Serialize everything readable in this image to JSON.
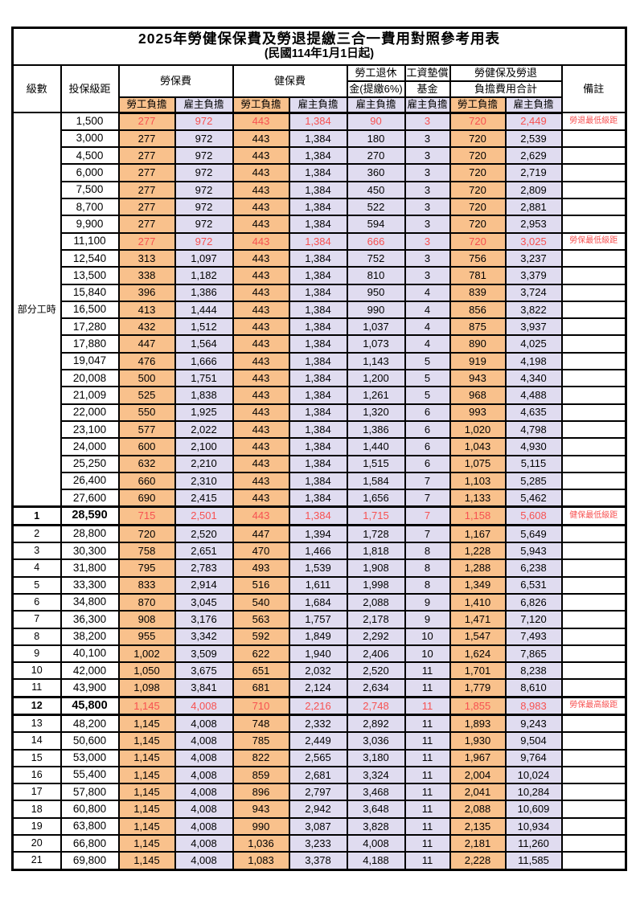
{
  "title": "2025年勞健保保費及勞退提繳三合一費用對照參考用表",
  "subtitle": "(民國114年1月1日起)",
  "colors": {
    "employee_bg": "#F9C18C",
    "employer_bg": "#E0DCF0",
    "highlight_red": "#F75151",
    "border": "#000000"
  },
  "header": {
    "level": "級數",
    "bracket": "投保級距",
    "labor": "勞保費",
    "health": "健保費",
    "pension_line1": "勞工退休",
    "pension_line2": "金(提繳6%)",
    "wagefund_line1": "工資墊償",
    "wagefund_line2": "基金",
    "total_line1": "勞健保及勞退",
    "total_line2": "負擔費用合計",
    "remark": "備註",
    "employee": "勞工負擔",
    "employer": "雇主負擔"
  },
  "part_time_label": "部分工時",
  "part_time_rows": [
    {
      "bracket": "1,500",
      "values": [
        "277",
        "972",
        "443",
        "1,384",
        "90",
        "3",
        "720",
        "2,449"
      ],
      "remark": "勞退最低級距",
      "red": true,
      "special": false
    },
    {
      "bracket": "3,000",
      "values": [
        "277",
        "972",
        "443",
        "1,384",
        "180",
        "3",
        "720",
        "2,539"
      ],
      "remark": "",
      "red": false,
      "special": false
    },
    {
      "bracket": "4,500",
      "values": [
        "277",
        "972",
        "443",
        "1,384",
        "270",
        "3",
        "720",
        "2,629"
      ],
      "remark": "",
      "red": false,
      "special": false
    },
    {
      "bracket": "6,000",
      "values": [
        "277",
        "972",
        "443",
        "1,384",
        "360",
        "3",
        "720",
        "2,719"
      ],
      "remark": "",
      "red": false,
      "special": false
    },
    {
      "bracket": "7,500",
      "values": [
        "277",
        "972",
        "443",
        "1,384",
        "450",
        "3",
        "720",
        "2,809"
      ],
      "remark": "",
      "red": false,
      "special": false
    },
    {
      "bracket": "8,700",
      "values": [
        "277",
        "972",
        "443",
        "1,384",
        "522",
        "3",
        "720",
        "2,881"
      ],
      "remark": "",
      "red": false,
      "special": false
    },
    {
      "bracket": "9,900",
      "values": [
        "277",
        "972",
        "443",
        "1,384",
        "594",
        "3",
        "720",
        "2,953"
      ],
      "remark": "",
      "red": false,
      "special": false
    },
    {
      "bracket": "11,100",
      "values": [
        "277",
        "972",
        "443",
        "1,384",
        "666",
        "3",
        "720",
        "3,025"
      ],
      "remark": "勞保最低級距",
      "red": true,
      "special": false
    },
    {
      "bracket": "12,540",
      "values": [
        "313",
        "1,097",
        "443",
        "1,384",
        "752",
        "3",
        "756",
        "3,237"
      ],
      "remark": "",
      "red": false,
      "special": false
    },
    {
      "bracket": "13,500",
      "values": [
        "338",
        "1,182",
        "443",
        "1,384",
        "810",
        "3",
        "781",
        "3,379"
      ],
      "remark": "",
      "red": false,
      "special": false
    },
    {
      "bracket": "15,840",
      "values": [
        "396",
        "1,386",
        "443",
        "1,384",
        "950",
        "4",
        "839",
        "3,724"
      ],
      "remark": "",
      "red": false,
      "special": false
    },
    {
      "bracket": "16,500",
      "values": [
        "413",
        "1,444",
        "443",
        "1,384",
        "990",
        "4",
        "856",
        "3,822"
      ],
      "remark": "",
      "red": false,
      "special": false
    },
    {
      "bracket": "17,280",
      "values": [
        "432",
        "1,512",
        "443",
        "1,384",
        "1,037",
        "4",
        "875",
        "3,937"
      ],
      "remark": "",
      "red": false,
      "special": false
    },
    {
      "bracket": "17,880",
      "values": [
        "447",
        "1,564",
        "443",
        "1,384",
        "1,073",
        "4",
        "890",
        "4,025"
      ],
      "remark": "",
      "red": false,
      "special": false
    },
    {
      "bracket": "19,047",
      "values": [
        "476",
        "1,666",
        "443",
        "1,384",
        "1,143",
        "5",
        "919",
        "4,198"
      ],
      "remark": "",
      "red": false,
      "special": false
    },
    {
      "bracket": "20,008",
      "values": [
        "500",
        "1,751",
        "443",
        "1,384",
        "1,200",
        "5",
        "943",
        "4,340"
      ],
      "remark": "",
      "red": false,
      "special": false
    },
    {
      "bracket": "21,009",
      "values": [
        "525",
        "1,838",
        "443",
        "1,384",
        "1,261",
        "5",
        "968",
        "4,488"
      ],
      "remark": "",
      "red": false,
      "special": false
    },
    {
      "bracket": "22,000",
      "values": [
        "550",
        "1,925",
        "443",
        "1,384",
        "1,320",
        "6",
        "993",
        "4,635"
      ],
      "remark": "",
      "red": false,
      "special": false
    },
    {
      "bracket": "23,100",
      "values": [
        "577",
        "2,022",
        "443",
        "1,384",
        "1,386",
        "6",
        "1,020",
        "4,798"
      ],
      "remark": "",
      "red": false,
      "special": false
    },
    {
      "bracket": "24,000",
      "values": [
        "600",
        "2,100",
        "443",
        "1,384",
        "1,440",
        "6",
        "1,043",
        "4,930"
      ],
      "remark": "",
      "red": false,
      "special": false
    },
    {
      "bracket": "25,250",
      "values": [
        "632",
        "2,210",
        "443",
        "1,384",
        "1,515",
        "6",
        "1,075",
        "5,115"
      ],
      "remark": "",
      "red": false,
      "special": false
    },
    {
      "bracket": "26,400",
      "values": [
        "660",
        "2,310",
        "443",
        "1,384",
        "1,584",
        "7",
        "1,103",
        "5,285"
      ],
      "remark": "",
      "red": false,
      "special": false
    },
    {
      "bracket": "27,600",
      "values": [
        "690",
        "2,415",
        "443",
        "1,384",
        "1,656",
        "7",
        "1,133",
        "5,462"
      ],
      "remark": "",
      "red": false,
      "special": false
    }
  ],
  "level_rows": [
    {
      "level": "1",
      "bracket": "28,590",
      "values": [
        "715",
        "2,501",
        "443",
        "1,384",
        "1,715",
        "7",
        "1,158",
        "5,608"
      ],
      "remark": "健保最低級距",
      "red": true,
      "special": true
    },
    {
      "level": "2",
      "bracket": "28,800",
      "values": [
        "720",
        "2,520",
        "447",
        "1,394",
        "1,728",
        "7",
        "1,167",
        "5,649"
      ],
      "remark": "",
      "red": false,
      "special": false
    },
    {
      "level": "3",
      "bracket": "30,300",
      "values": [
        "758",
        "2,651",
        "470",
        "1,466",
        "1,818",
        "8",
        "1,228",
        "5,943"
      ],
      "remark": "",
      "red": false,
      "special": false
    },
    {
      "level": "4",
      "bracket": "31,800",
      "values": [
        "795",
        "2,783",
        "493",
        "1,539",
        "1,908",
        "8",
        "1,288",
        "6,238"
      ],
      "remark": "",
      "red": false,
      "special": false
    },
    {
      "level": "5",
      "bracket": "33,300",
      "values": [
        "833",
        "2,914",
        "516",
        "1,611",
        "1,998",
        "8",
        "1,349",
        "6,531"
      ],
      "remark": "",
      "red": false,
      "special": false
    },
    {
      "level": "6",
      "bracket": "34,800",
      "values": [
        "870",
        "3,045",
        "540",
        "1,684",
        "2,088",
        "9",
        "1,410",
        "6,826"
      ],
      "remark": "",
      "red": false,
      "special": false
    },
    {
      "level": "7",
      "bracket": "36,300",
      "values": [
        "908",
        "3,176",
        "563",
        "1,757",
        "2,178",
        "9",
        "1,471",
        "7,120"
      ],
      "remark": "",
      "red": false,
      "special": false
    },
    {
      "level": "8",
      "bracket": "38,200",
      "values": [
        "955",
        "3,342",
        "592",
        "1,849",
        "2,292",
        "10",
        "1,547",
        "7,493"
      ],
      "remark": "",
      "red": false,
      "special": false
    },
    {
      "level": "9",
      "bracket": "40,100",
      "values": [
        "1,002",
        "3,509",
        "622",
        "1,940",
        "2,406",
        "10",
        "1,624",
        "7,865"
      ],
      "remark": "",
      "red": false,
      "special": false
    },
    {
      "level": "10",
      "bracket": "42,000",
      "values": [
        "1,050",
        "3,675",
        "651",
        "2,032",
        "2,520",
        "11",
        "1,701",
        "8,238"
      ],
      "remark": "",
      "red": false,
      "special": false
    },
    {
      "level": "11",
      "bracket": "43,900",
      "values": [
        "1,098",
        "3,841",
        "681",
        "2,124",
        "2,634",
        "11",
        "1,779",
        "8,610"
      ],
      "remark": "",
      "red": false,
      "special": false
    },
    {
      "level": "12",
      "bracket": "45,800",
      "values": [
        "1,145",
        "4,008",
        "710",
        "2,216",
        "2,748",
        "11",
        "1,855",
        "8,983"
      ],
      "remark": "勞保最高級距",
      "red": true,
      "special": true
    },
    {
      "level": "13",
      "bracket": "48,200",
      "values": [
        "1,145",
        "4,008",
        "748",
        "2,332",
        "2,892",
        "11",
        "1,893",
        "9,243"
      ],
      "remark": "",
      "red": false,
      "special": false
    },
    {
      "level": "14",
      "bracket": "50,600",
      "values": [
        "1,145",
        "4,008",
        "785",
        "2,449",
        "3,036",
        "11",
        "1,930",
        "9,504"
      ],
      "remark": "",
      "red": false,
      "special": false
    },
    {
      "level": "15",
      "bracket": "53,000",
      "values": [
        "1,145",
        "4,008",
        "822",
        "2,565",
        "3,180",
        "11",
        "1,967",
        "9,764"
      ],
      "remark": "",
      "red": false,
      "special": false
    },
    {
      "level": "16",
      "bracket": "55,400",
      "values": [
        "1,145",
        "4,008",
        "859",
        "2,681",
        "3,324",
        "11",
        "2,004",
        "10,024"
      ],
      "remark": "",
      "red": false,
      "special": false
    },
    {
      "level": "17",
      "bracket": "57,800",
      "values": [
        "1,145",
        "4,008",
        "896",
        "2,797",
        "3,468",
        "11",
        "2,041",
        "10,284"
      ],
      "remark": "",
      "red": false,
      "special": false
    },
    {
      "level": "18",
      "bracket": "60,800",
      "values": [
        "1,145",
        "4,008",
        "943",
        "2,942",
        "3,648",
        "11",
        "2,088",
        "10,609"
      ],
      "remark": "",
      "red": false,
      "special": false
    },
    {
      "level": "19",
      "bracket": "63,800",
      "values": [
        "1,145",
        "4,008",
        "990",
        "3,087",
        "3,828",
        "11",
        "2,135",
        "10,934"
      ],
      "remark": "",
      "red": false,
      "special": false
    },
    {
      "level": "20",
      "bracket": "66,800",
      "values": [
        "1,145",
        "4,008",
        "1,036",
        "3,233",
        "4,008",
        "11",
        "2,181",
        "11,260"
      ],
      "remark": "",
      "red": false,
      "special": false
    },
    {
      "level": "21",
      "bracket": "69,800",
      "values": [
        "1,145",
        "4,008",
        "1,083",
        "3,378",
        "4,188",
        "11",
        "2,228",
        "11,585"
      ],
      "remark": "",
      "red": false,
      "special": false
    }
  ],
  "value_column_names": [
    "labor-employee",
    "labor-employer",
    "health-employee",
    "health-employer",
    "pension-employer",
    "wagefund-employer",
    "total-employee",
    "total-employer"
  ],
  "value_column_kinds": [
    "emp",
    "er",
    "emp",
    "er",
    "er",
    "er",
    "emp",
    "er"
  ]
}
